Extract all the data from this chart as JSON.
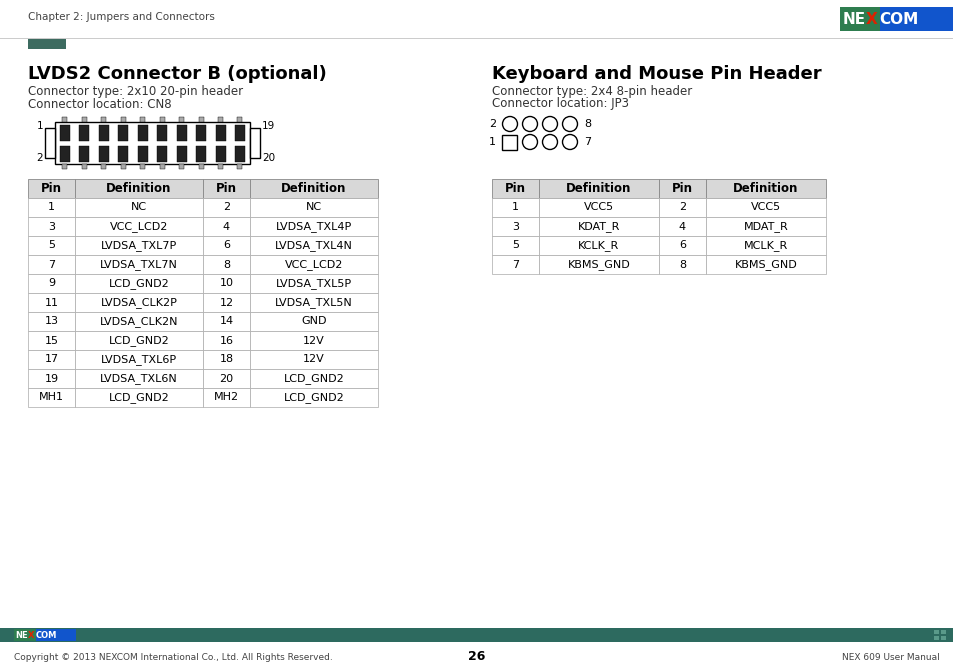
{
  "page_title": "Chapter 2: Jumpers and Connectors",
  "page_number": "26",
  "footer_left": "Copyright © 2013 NEXCOM International Co., Ltd. All Rights Reserved.",
  "footer_right": "NEX 609 User Manual",
  "section1_title": "LVDS2 Connector B (optional)",
  "section1_line1": "Connector type: 2x10 20-pin header",
  "section1_line2": "Connector location: CN8",
  "section2_title": "Keyboard and Mouse Pin Header",
  "section2_line1": "Connector type: 2x4 8-pin header",
  "section2_line2": "Connector location: JP3",
  "table1_headers": [
    "Pin",
    "Definition",
    "Pin",
    "Definition"
  ],
  "table1_rows": [
    [
      "1",
      "NC",
      "2",
      "NC"
    ],
    [
      "3",
      "VCC_LCD2",
      "4",
      "LVDSA_TXL4P"
    ],
    [
      "5",
      "LVDSA_TXL7P",
      "6",
      "LVDSA_TXL4N"
    ],
    [
      "7",
      "LVDSA_TXL7N",
      "8",
      "VCC_LCD2"
    ],
    [
      "9",
      "LCD_GND2",
      "10",
      "LVDSA_TXL5P"
    ],
    [
      "11",
      "LVDSA_CLK2P",
      "12",
      "LVDSA_TXL5N"
    ],
    [
      "13",
      "LVDSA_CLK2N",
      "14",
      "GND"
    ],
    [
      "15",
      "LCD_GND2",
      "16",
      "12V"
    ],
    [
      "17",
      "LVDSA_TXL6P",
      "18",
      "12V"
    ],
    [
      "19",
      "LVDSA_TXL6N",
      "20",
      "LCD_GND2"
    ],
    [
      "MH1",
      "LCD_GND2",
      "MH2",
      "LCD_GND2"
    ]
  ],
  "table2_headers": [
    "Pin",
    "Definition",
    "Pin",
    "Definition"
  ],
  "table2_rows": [
    [
      "1",
      "VCC5",
      "2",
      "VCC5"
    ],
    [
      "3",
      "KDAT_R",
      "4",
      "MDAT_R"
    ],
    [
      "5",
      "KCLK_R",
      "6",
      "MCLK_R"
    ],
    [
      "7",
      "KBMS_GND",
      "8",
      "KBMS_GND"
    ]
  ],
  "header_bg": "#d8d8d8",
  "teal_dark": "#2d6a5f",
  "footer_bg": "#2d6a5f",
  "nexcom_green": "#2e7d4f",
  "nexcom_blue": "#1155cc",
  "red_x": "#cc2200",
  "line_color": "#999999",
  "accent_rect": "#3d6b60"
}
